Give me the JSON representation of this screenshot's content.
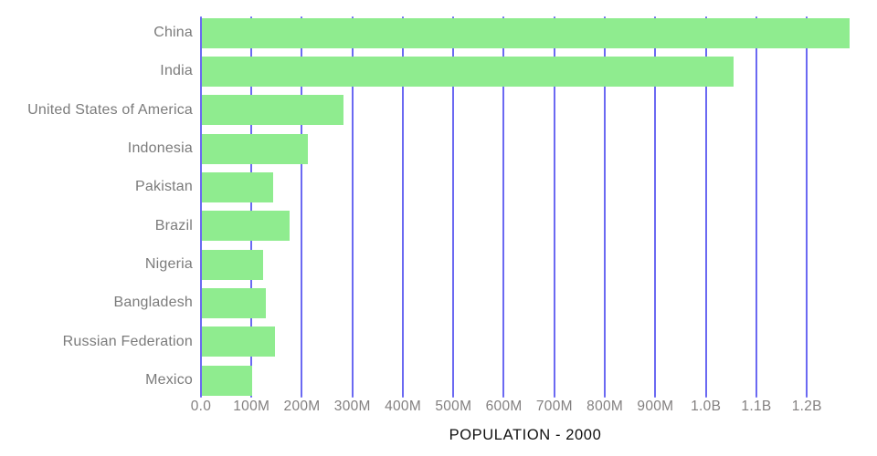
{
  "chart_data": {
    "type": "bar",
    "orientation": "horizontal",
    "title": "POPULATION - 2000",
    "categories": [
      "China",
      "India",
      "United States of America",
      "Indonesia",
      "Pakistan",
      "Brazil",
      "Nigeria",
      "Bangladesh",
      "Russian Federation",
      "Mexico"
    ],
    "values_millions": [
      1283,
      1053,
      281,
      210,
      141,
      174,
      122,
      127,
      146,
      100
    ],
    "series": [
      {
        "name": "Population 2000",
        "values_millions": [
          1283,
          1053,
          281,
          210,
          141,
          174,
          122,
          127,
          146,
          100
        ]
      }
    ],
    "xlabel": "POPULATION - 2000",
    "ylabel": "",
    "xlim_millions": [
      0,
      1294
    ],
    "grid": "vertical-gridlines-on",
    "legend": "none",
    "x_axis": {
      "tick_labels": [
        "0.0",
        "100M",
        "200M",
        "300M",
        "400M",
        "500M",
        "600M",
        "700M",
        "800M",
        "900M",
        "1.0B",
        "1.1B",
        "1.2B"
      ],
      "tick_values_millions": [
        0,
        100,
        200,
        300,
        400,
        500,
        600,
        700,
        800,
        900,
        1000,
        1100,
        1200
      ]
    },
    "colors": {
      "bar_fill": "#8fec8f",
      "gridline": "#6b69f2",
      "category_label_text": "#7b7b7b",
      "tick_label_text": "#838080",
      "title_text": "#101010",
      "background": "#ffffff"
    }
  }
}
